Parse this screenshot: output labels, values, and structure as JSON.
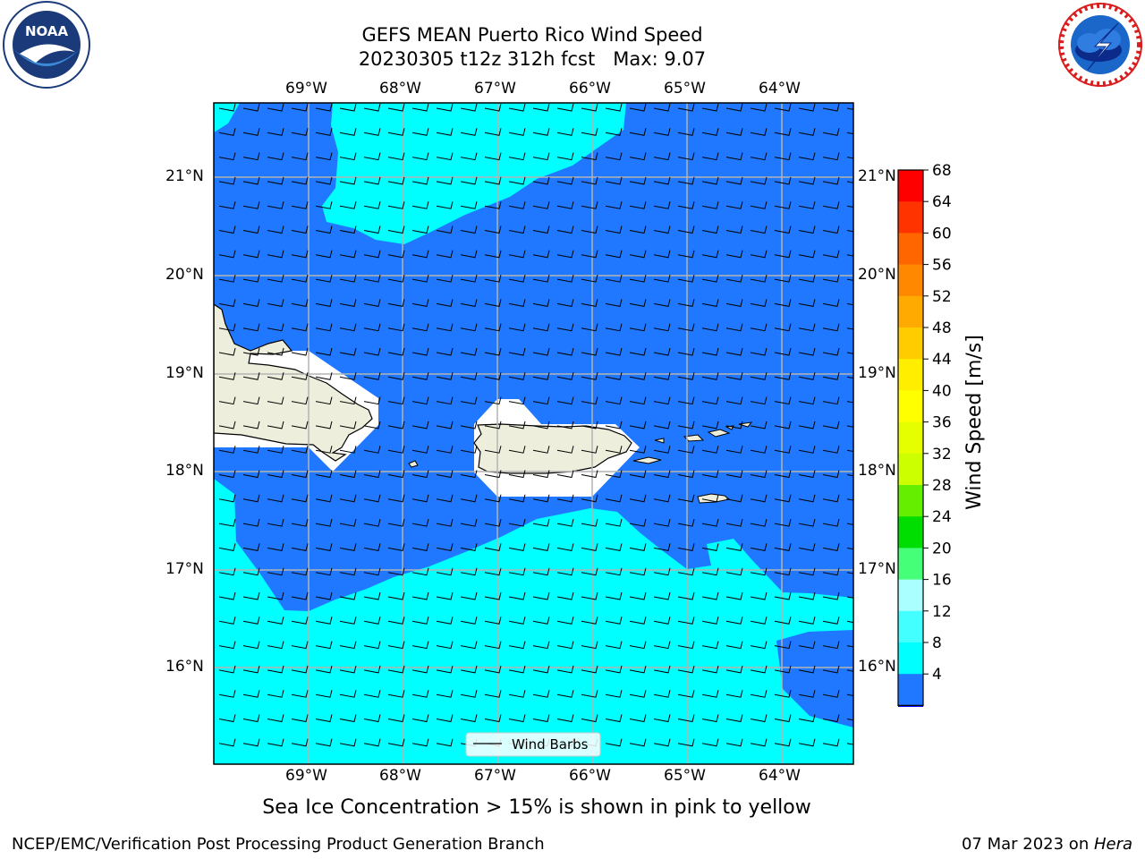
{
  "header": {
    "title_line1": "GEFS MEAN Puerto Rico Wind Speed",
    "title_line2": "20230305 t12z 312h fcst   Max: 9.07"
  },
  "logos": {
    "left": {
      "icon": "noaa-logo",
      "text": "NOAA",
      "ring_text": "NATIONAL OCEANIC AND ATMOSPHERIC ADMINISTRATION · U.S. DEPARTMENT OF COMMERCE"
    },
    "right": {
      "icon": "nws-logo",
      "ring_text": "NATIONAL WEATHER SERVICE"
    }
  },
  "map": {
    "lon_ticks": [
      "69°W",
      "68°W",
      "67°W",
      "66°W",
      "65°W",
      "64°W"
    ],
    "lat_ticks": [
      "21°N",
      "20°N",
      "19°N",
      "18°N",
      "17°N",
      "16°N"
    ],
    "legend_label": "Wind Barbs",
    "colors": {
      "ocean_4_8": "#1f78ff",
      "ocean_8_12": "#00ffff",
      "land": "#eeeedc",
      "grid": "#b4b4b4"
    }
  },
  "colorbar": {
    "label": "Wind Speed [m/s]",
    "ticks": [
      "68",
      "64",
      "60",
      "56",
      "52",
      "48",
      "44",
      "40",
      "36",
      "32",
      "28",
      "24",
      "20",
      "16",
      "12",
      "8",
      "4"
    ],
    "colors": [
      "#ff0000",
      "#ff3300",
      "#ff6600",
      "#ff8800",
      "#ffaa00",
      "#ffcc00",
      "#ffee00",
      "#ffff00",
      "#e6ff00",
      "#ccff00",
      "#66ee00",
      "#00dd00",
      "#44ff77",
      "#aaffff",
      "#44ffff",
      "#00ffff",
      "#1f78ff"
    ],
    "under_color": "#0000ff"
  },
  "footer": {
    "note": "Sea Ice Concentration > 15% is shown in pink to yellow",
    "left": "NCEP/EMC/Verification Post Processing Product Generation Branch",
    "right_prefix": "07 Mar 2023 on ",
    "right_machine": "Hera"
  }
}
